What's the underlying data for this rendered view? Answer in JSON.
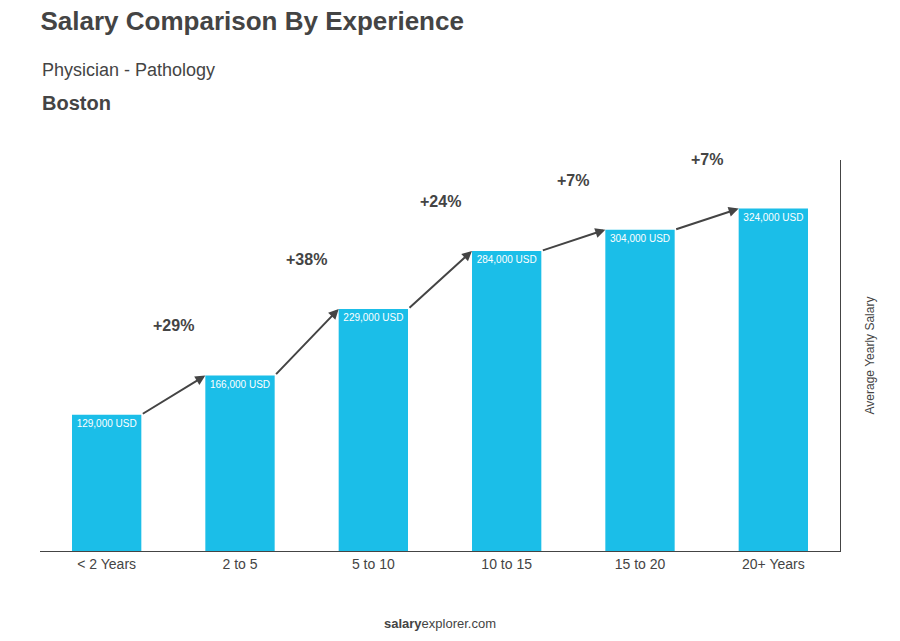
{
  "chart_data": {
    "type": "bar",
    "title": "Salary Comparison By Experience",
    "subtitle": "Physician - Pathology",
    "city": "Boston",
    "ylabel": "Average Yearly Salary",
    "footer": [
      "salary",
      "explorer.com"
    ],
    "categories": [
      "< 2 Years",
      "2 to 5",
      "5 to 10",
      "10 to 15",
      "15 to 20",
      "20+ Years"
    ],
    "values": [
      129000,
      166000,
      229000,
      284000,
      304000,
      324000
    ],
    "value_labels": [
      "129,000 USD",
      "166,000 USD",
      "229,000 USD",
      "284,000 USD",
      "304,000 USD",
      "324,000 USD"
    ],
    "data_labels": true,
    "annotations": [
      "+29%",
      "+38%",
      "+24%",
      "+7%",
      "+7%"
    ],
    "color": "#1BBEE8",
    "ylim": [
      0,
      370000
    ],
    "grid": false,
    "tick_labels": "x"
  }
}
